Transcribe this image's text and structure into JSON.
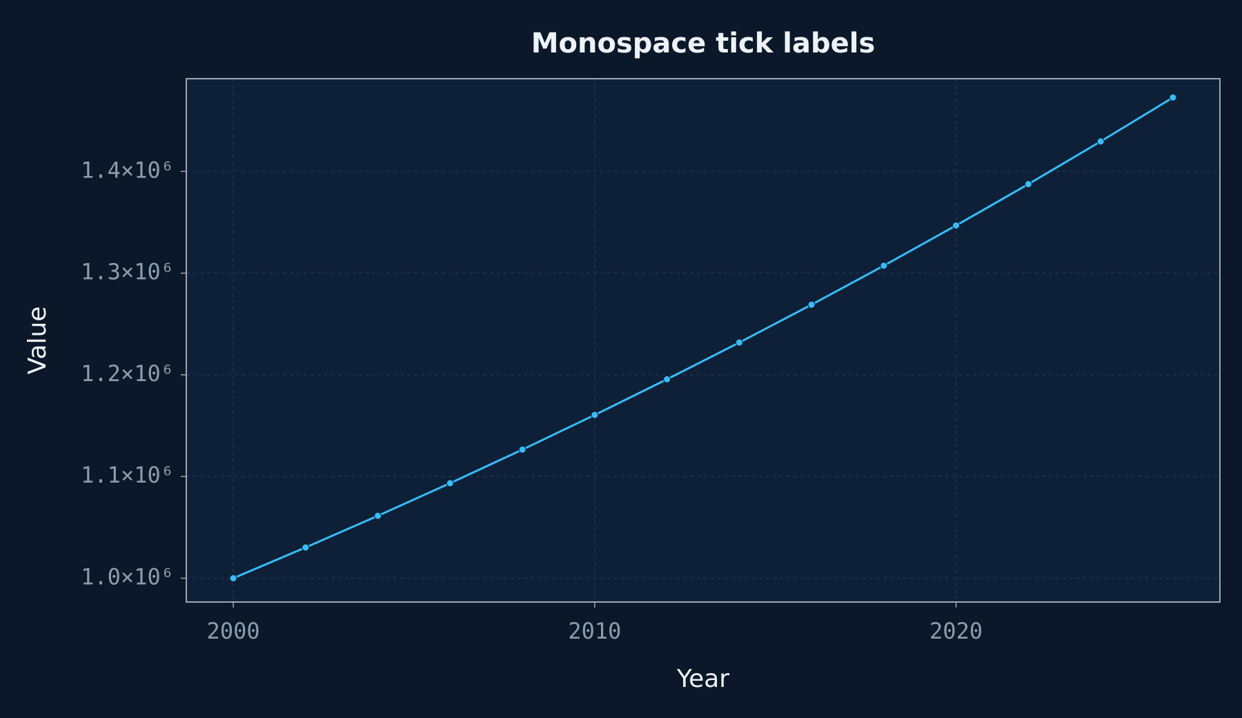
{
  "chart_data": {
    "type": "line",
    "title": "Monospace tick labels",
    "x_label": "Year",
    "y_label": "Value",
    "x": [
      2000,
      2002,
      2004,
      2006,
      2008,
      2010,
      2012,
      2014,
      2016,
      2018,
      2020,
      2022,
      2024,
      2026
    ],
    "series": [
      {
        "name": "Value",
        "color": "#38bdf8",
        "values": [
          1000000,
          1030225,
          1061364,
          1093443,
          1126493,
          1160541,
          1195618,
          1231756,
          1268986,
          1307341,
          1346855,
          1387564,
          1429503,
          1472710
        ]
      }
    ],
    "xlim": [
      1998.7,
      2027.3
    ],
    "xticks": [
      2000,
      2010,
      2020
    ],
    "ylim": [
      976600,
      1491200
    ],
    "yticks": [
      {
        "value": 1000000,
        "label": "1.0×10⁶"
      },
      {
        "value": 1100000,
        "label": "1.1×10⁶"
      },
      {
        "value": 1200000,
        "label": "1.2×10⁶"
      },
      {
        "value": 1300000,
        "label": "1.3×10⁶"
      },
      {
        "value": 1400000,
        "label": "1.4×10⁶"
      }
    ],
    "grid": true
  }
}
